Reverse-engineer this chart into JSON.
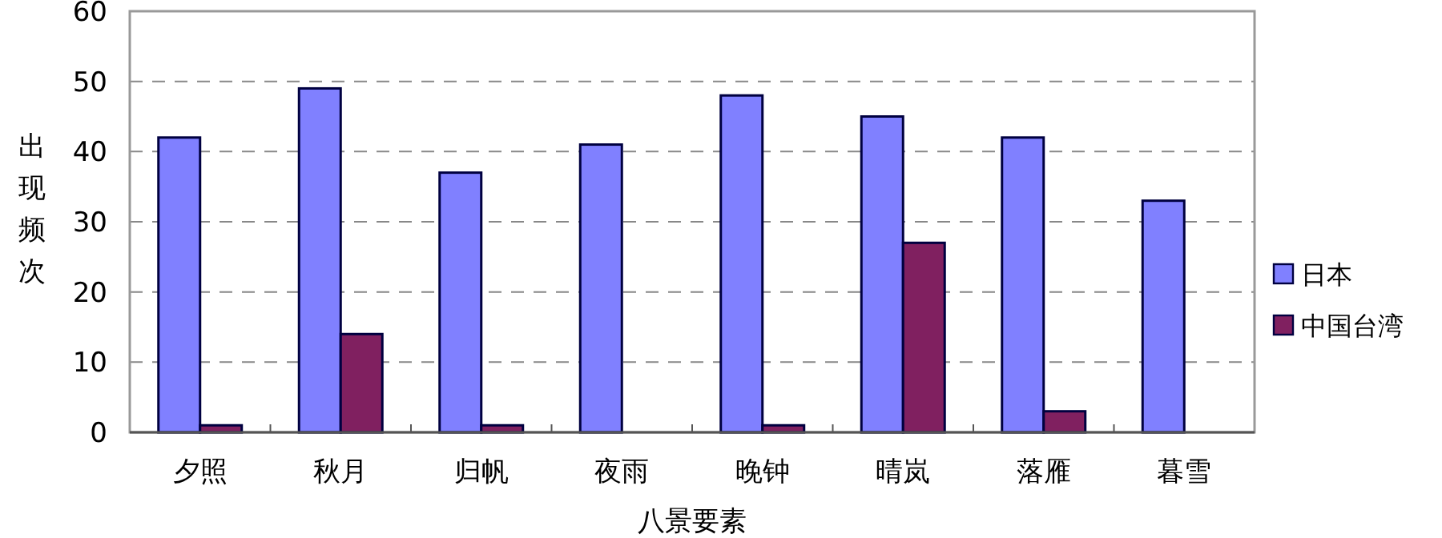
{
  "chart_data": {
    "type": "bar",
    "xlabel": "八景要素",
    "ylabel": "出现频次",
    "categories": [
      "夕照",
      "秋月",
      "归帆",
      "夜雨",
      "晚钟",
      "晴岚",
      "落雁",
      "暮雪"
    ],
    "series": [
      {
        "name": "日本",
        "color": "#8080ff",
        "values": [
          42,
          49,
          37,
          41,
          48,
          45,
          42,
          33
        ]
      },
      {
        "name": "中国台湾",
        "color": "#802060",
        "values": [
          1,
          14,
          1,
          null,
          1,
          27,
          3,
          null
        ]
      }
    ],
    "ylim": [
      0,
      60
    ],
    "yticks": [
      0,
      10,
      20,
      30,
      40,
      50,
      60
    ],
    "grid": "y",
    "legend": "right"
  }
}
